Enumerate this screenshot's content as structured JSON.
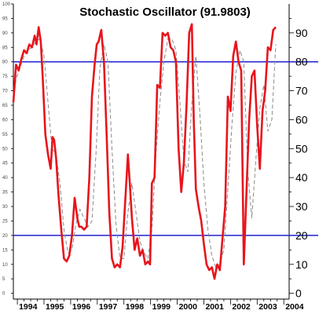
{
  "chart_data": {
    "type": "line",
    "title": "Stochastic Oscillator (91.9803)",
    "xlabel": "",
    "ylabel": "",
    "xlim": [
      1993.85,
      2004.2
    ],
    "ylim": [
      -2,
      100
    ],
    "x_tick_labels": [
      "1994",
      "1995",
      "1996",
      "1997",
      "1998",
      "1999",
      "2000",
      "2001",
      "2002",
      "2003",
      "2004"
    ],
    "y_tick_labels_left": [
      "0",
      "5",
      "10",
      "15",
      "20",
      "25",
      "30",
      "35",
      "40",
      "45",
      "50",
      "55",
      "60",
      "65",
      "70",
      "75",
      "80",
      "85",
      "90",
      "95",
      "100"
    ],
    "y_tick_labels_right": [
      "0",
      "10",
      "20",
      "30",
      "40",
      "50",
      "60",
      "70",
      "80",
      "90"
    ],
    "reference_lines": [
      80,
      20
    ],
    "grid": false,
    "colors": {
      "main": "#e8141c",
      "signal": "#8a8a8a",
      "reference": "#2020d0",
      "axis": "#000000"
    },
    "series": [
      {
        "style": "solid-thick",
        "x": [
          1993.85,
          1993.95,
          1994.05,
          1994.15,
          1994.25,
          1994.35,
          1994.45,
          1994.55,
          1994.65,
          1994.72,
          1994.8,
          1994.88,
          1994.95,
          1995.05,
          1995.15,
          1995.25,
          1995.32,
          1995.38,
          1995.45,
          1995.55,
          1995.65,
          1995.75,
          1995.85,
          1995.95,
          1996.05,
          1996.15,
          1996.25,
          1996.32,
          1996.4,
          1996.5,
          1996.6,
          1996.7,
          1996.8,
          1996.9,
          1996.98,
          1997.05,
          1997.15,
          1997.25,
          1997.35,
          1997.45,
          1997.55,
          1997.65,
          1997.75,
          1997.85,
          1997.95,
          1998.05,
          1998.15,
          1998.22,
          1998.3,
          1998.4,
          1998.5,
          1998.6,
          1998.7,
          1998.8,
          1998.9,
          1998.98,
          1999.05,
          1999.15,
          1999.25,
          1999.35,
          1999.45,
          1999.55,
          1999.65,
          1999.75,
          1999.85,
          1999.95,
          2000.05,
          2000.15,
          2000.25,
          2000.35,
          2000.45,
          2000.55,
          2000.62,
          2000.7,
          2000.8,
          2000.9,
          2001.0,
          2001.1,
          2001.2,
          2001.3,
          2001.4,
          2001.5,
          2001.6,
          2001.7,
          2001.8,
          2001.9,
          2002.0,
          2002.1,
          2002.2,
          2002.3,
          2002.4,
          2002.5,
          2002.6,
          2002.7,
          2002.8,
          2002.9,
          2003.0,
          2003.1,
          2003.2,
          2003.3,
          2003.4,
          2003.5,
          2003.6,
          2003.7
        ],
        "values": [
          66,
          79,
          77,
          81,
          84,
          83,
          86,
          85,
          89,
          86,
          92,
          87,
          75,
          55,
          48,
          43,
          54,
          53,
          47,
          33,
          22,
          12,
          11,
          13,
          20,
          33,
          26,
          23,
          23,
          22,
          23,
          40,
          68,
          79,
          86,
          87,
          91,
          80,
          55,
          28,
          12,
          9,
          10,
          9,
          16,
          32,
          48,
          38,
          26,
          15,
          19,
          13,
          15,
          10,
          11,
          10,
          38,
          40,
          72,
          71,
          90,
          89,
          90,
          85,
          84,
          80,
          50,
          35,
          45,
          65,
          90,
          93,
          60,
          36,
          30,
          25,
          17,
          10,
          8,
          9,
          5,
          10,
          8,
          19,
          30,
          68,
          63,
          82,
          87,
          80,
          77,
          10,
          35,
          60,
          75,
          77,
          58,
          43,
          63,
          70,
          85,
          84,
          91,
          92
        ]
      },
      {
        "style": "dashed-thin",
        "x": [
          1993.85,
          1993.95,
          1994.1,
          1994.25,
          1994.4,
          1994.55,
          1994.7,
          1994.85,
          1995.0,
          1995.15,
          1995.3,
          1995.45,
          1995.6,
          1995.75,
          1995.9,
          1996.05,
          1996.2,
          1996.35,
          1996.5,
          1996.65,
          1996.8,
          1996.95,
          1997.1,
          1997.25,
          1997.4,
          1997.55,
          1997.7,
          1997.85,
          1998.0,
          1998.15,
          1998.3,
          1998.45,
          1998.6,
          1998.75,
          1998.9,
          1999.05,
          1999.2,
          1999.35,
          1999.5,
          1999.65,
          1999.8,
          1999.95,
          2000.1,
          2000.25,
          2000.4,
          2000.55,
          2000.7,
          2000.85,
          2001.0,
          2001.15,
          2001.3,
          2001.45,
          2001.6,
          2001.75,
          2001.9,
          2002.05,
          2002.2,
          2002.35,
          2002.5,
          2002.65,
          2002.8,
          2002.95,
          2003.1,
          2003.25,
          2003.4,
          2003.55,
          2003.7
        ],
        "values": [
          66,
          74,
          78,
          82,
          84,
          85,
          87,
          88,
          82,
          66,
          50,
          48,
          38,
          22,
          14,
          15,
          24,
          29,
          26,
          23,
          25,
          48,
          78,
          86,
          80,
          50,
          24,
          12,
          12,
          28,
          38,
          28,
          18,
          14,
          12,
          22,
          48,
          66,
          80,
          88,
          88,
          84,
          66,
          46,
          42,
          66,
          82,
          62,
          38,
          22,
          13,
          9,
          10,
          15,
          36,
          58,
          76,
          84,
          80,
          42,
          26,
          46,
          64,
          72,
          56,
          60,
          86
        ]
      }
    ]
  }
}
